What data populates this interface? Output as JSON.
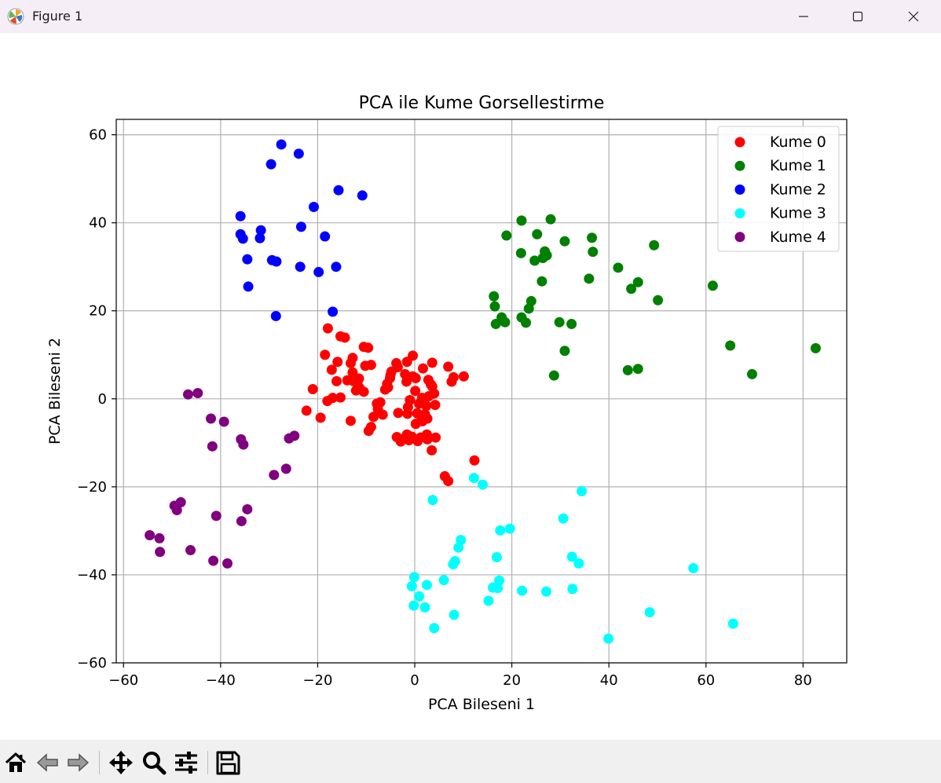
{
  "window": {
    "title": "Figure 1",
    "icons": {
      "app": "matplotlib-icon",
      "minimize": "minimize-icon",
      "maximize": "maximize-icon",
      "close": "close-icon"
    }
  },
  "toolbar": {
    "tools": [
      {
        "name": "home-button",
        "icon": "home-icon"
      },
      {
        "name": "back-button",
        "icon": "back-arrow-icon"
      },
      {
        "name": "forward-button",
        "icon": "forward-arrow-icon"
      },
      {
        "name": "pan-button",
        "icon": "move-icon"
      },
      {
        "name": "zoom-button",
        "icon": "magnifier-icon"
      },
      {
        "name": "configure-subplots-button",
        "icon": "sliders-icon"
      },
      {
        "name": "save-button",
        "icon": "floppy-disk-icon"
      }
    ]
  },
  "chart_data": {
    "type": "scatter",
    "title": "PCA ile Kume Gorsellestirme",
    "xlabel": "PCA Bileseni 1",
    "ylabel": "PCA Bileseni 2",
    "xlim": [
      -61.5,
      89
    ],
    "ylim": [
      -60,
      63.5
    ],
    "xticks": [
      -60,
      -40,
      -20,
      0,
      20,
      40,
      60,
      80
    ],
    "yticks": [
      -60,
      -40,
      -20,
      0,
      20,
      40,
      60
    ],
    "grid": true,
    "legend_position": "top-right",
    "series": [
      {
        "name": "Kume 0",
        "color": "#ff0000",
        "points": [
          [
            -17.9,
            16.0
          ],
          [
            -15.3,
            14.2
          ],
          [
            -14.4,
            13.9
          ],
          [
            -10.5,
            11.8
          ],
          [
            -9.6,
            11.6
          ],
          [
            -18.5,
            10.0
          ],
          [
            -12.8,
            9.3
          ],
          [
            -15.9,
            8.4
          ],
          [
            -13.2,
            8.1
          ],
          [
            -17.1,
            6.6
          ],
          [
            -12.8,
            6.0
          ],
          [
            -11.5,
            4.6
          ],
          [
            -13.9,
            4.2
          ],
          [
            -12.6,
            4.0
          ],
          [
            -11.8,
            3.7
          ],
          [
            -16.1,
            4.0
          ],
          [
            -12.1,
            1.9
          ],
          [
            -10.5,
            1.6
          ],
          [
            -21.0,
            2.2
          ],
          [
            -15.3,
            0.3
          ],
          [
            -16.9,
            0.2
          ],
          [
            -18.0,
            -0.5
          ],
          [
            -22.3,
            -2.7
          ],
          [
            -19.4,
            -4.3
          ],
          [
            -13.2,
            -5.0
          ],
          [
            -9.5,
            -7.3
          ],
          [
            -9.0,
            -6.4
          ],
          [
            -8.5,
            -4.1
          ],
          [
            -7.6,
            -2.3
          ],
          [
            -7.1,
            -0.8
          ],
          [
            -7.8,
            -1.1
          ],
          [
            -10.2,
            7.5
          ],
          [
            -9.0,
            7.7
          ],
          [
            -6.1,
            2.1
          ],
          [
            -5.7,
            3.4
          ],
          [
            -5.1,
            4.7
          ],
          [
            -4.8,
            6.2
          ],
          [
            -3.8,
            8.1
          ],
          [
            -3.5,
            7.2
          ],
          [
            -5.5,
            2.6
          ],
          [
            -1.6,
            8.4
          ],
          [
            -0.4,
            9.8
          ],
          [
            -2.0,
            5.6
          ],
          [
            -0.4,
            5.1
          ],
          [
            -1.7,
            3.9
          ],
          [
            0.2,
            4.7
          ],
          [
            1.7,
            6.9
          ],
          [
            3.6,
            8.2
          ],
          [
            6.9,
            7.3
          ],
          [
            7.6,
            3.9
          ],
          [
            8.0,
            4.9
          ],
          [
            10.1,
            5.1
          ],
          [
            2.8,
            4.3
          ],
          [
            3.3,
            3.3
          ],
          [
            2.9,
            0.6
          ],
          [
            0.1,
            1.8
          ],
          [
            1.5,
            0.2
          ],
          [
            0.9,
            -1.1
          ],
          [
            2.4,
            -1.6
          ],
          [
            4.2,
            -1.4
          ],
          [
            -1.0,
            -0.3
          ],
          [
            -1.4,
            -1.9
          ],
          [
            -3.4,
            -3.2
          ],
          [
            -1.5,
            -3.4
          ],
          [
            0.5,
            -3.3
          ],
          [
            1.4,
            -4.3
          ],
          [
            2.6,
            -4.5
          ],
          [
            1.6,
            -5.1
          ],
          [
            0.2,
            -5.7
          ],
          [
            2.1,
            -3.5
          ],
          [
            -3.7,
            -8.7
          ],
          [
            -2.5,
            -9.1
          ],
          [
            -2.9,
            -9.7
          ],
          [
            -1.6,
            -8.1
          ],
          [
            -0.6,
            -8.6
          ],
          [
            -1.2,
            -9.4
          ],
          [
            1.2,
            -8.8
          ],
          [
            2.5,
            -8.1
          ],
          [
            4.3,
            -8.8
          ],
          [
            2.6,
            -9.2
          ],
          [
            0.6,
            -9.6
          ],
          [
            3.5,
            -11.7
          ],
          [
            6.2,
            -17.6
          ],
          [
            6.9,
            -18.7
          ],
          [
            12.3,
            -14.0
          ],
          [
            3.6,
            2.8
          ],
          [
            4.0,
            1.2
          ],
          [
            -5.0,
            5.4
          ],
          [
            -11.4,
            2.5
          ],
          [
            -6.6,
            -3.6
          ]
        ]
      },
      {
        "name": "Kume 1",
        "color": "#008000",
        "points": [
          [
            22.0,
            40.5
          ],
          [
            28.0,
            40.8
          ],
          [
            18.9,
            37.1
          ],
          [
            25.2,
            37.4
          ],
          [
            30.9,
            35.8
          ],
          [
            36.5,
            36.6
          ],
          [
            21.9,
            33.1
          ],
          [
            26.8,
            33.5
          ],
          [
            24.7,
            31.4
          ],
          [
            26.4,
            32.0
          ],
          [
            27.2,
            32.6
          ],
          [
            36.7,
            33.4
          ],
          [
            49.3,
            34.9
          ],
          [
            41.9,
            29.8
          ],
          [
            26.2,
            26.7
          ],
          [
            35.9,
            27.3
          ],
          [
            46.0,
            26.5
          ],
          [
            44.6,
            25.0
          ],
          [
            61.4,
            25.7
          ],
          [
            50.1,
            22.4
          ],
          [
            16.3,
            23.3
          ],
          [
            24.0,
            22.2
          ],
          [
            16.5,
            21.0
          ],
          [
            23.5,
            20.5
          ],
          [
            17.9,
            18.5
          ],
          [
            22.0,
            18.5
          ],
          [
            16.7,
            17.0
          ],
          [
            18.6,
            17.4
          ],
          [
            22.9,
            17.3
          ],
          [
            29.8,
            17.4
          ],
          [
            32.3,
            17.0
          ],
          [
            30.9,
            10.9
          ],
          [
            28.7,
            5.3
          ],
          [
            43.9,
            6.5
          ],
          [
            46.0,
            6.8
          ],
          [
            65.0,
            12.1
          ],
          [
            69.5,
            5.6
          ],
          [
            82.6,
            11.5
          ]
        ]
      },
      {
        "name": "Kume 2",
        "color": "#0000ff",
        "points": [
          [
            -27.5,
            57.8
          ],
          [
            -23.9,
            55.7
          ],
          [
            -29.6,
            53.3
          ],
          [
            -15.7,
            47.4
          ],
          [
            -10.8,
            46.2
          ],
          [
            -20.8,
            43.6
          ],
          [
            -35.9,
            41.5
          ],
          [
            -23.4,
            39.1
          ],
          [
            -31.7,
            38.3
          ],
          [
            -35.9,
            37.4
          ],
          [
            -35.4,
            36.4
          ],
          [
            -31.9,
            36.5
          ],
          [
            -18.5,
            36.9
          ],
          [
            -34.5,
            31.7
          ],
          [
            -29.4,
            31.5
          ],
          [
            -28.5,
            31.2
          ],
          [
            -23.6,
            30.0
          ],
          [
            -16.2,
            30.0
          ],
          [
            -19.8,
            28.8
          ],
          [
            -34.3,
            25.5
          ],
          [
            -16.9,
            19.8
          ],
          [
            -28.6,
            18.8
          ]
        ]
      },
      {
        "name": "Kume 3",
        "color": "#00ffff",
        "points": [
          [
            12.2,
            -18.0
          ],
          [
            14.0,
            -19.5
          ],
          [
            34.4,
            -21.0
          ],
          [
            3.7,
            -23.0
          ],
          [
            30.6,
            -27.2
          ],
          [
            17.6,
            -29.9
          ],
          [
            19.6,
            -29.5
          ],
          [
            9.5,
            -32.1
          ],
          [
            9.0,
            -33.8
          ],
          [
            8.3,
            -36.9
          ],
          [
            7.9,
            -37.6
          ],
          [
            16.9,
            -36.0
          ],
          [
            32.4,
            -35.9
          ],
          [
            33.8,
            -37.4
          ],
          [
            57.4,
            -38.5
          ],
          [
            -0.1,
            -40.5
          ],
          [
            6.0,
            -41.2
          ],
          [
            17.4,
            -41.3
          ],
          [
            2.5,
            -42.3
          ],
          [
            -0.6,
            -42.6
          ],
          [
            16.1,
            -42.9
          ],
          [
            17.1,
            -43.0
          ],
          [
            22.1,
            -43.6
          ],
          [
            27.1,
            -43.8
          ],
          [
            32.5,
            -43.2
          ],
          [
            0.9,
            -44.9
          ],
          [
            -0.2,
            -47.0
          ],
          [
            15.2,
            -45.9
          ],
          [
            2.1,
            -47.4
          ],
          [
            8.1,
            -49.1
          ],
          [
            48.4,
            -48.5
          ],
          [
            4.0,
            -52.1
          ],
          [
            65.6,
            -51.1
          ],
          [
            39.9,
            -54.5
          ]
        ]
      },
      {
        "name": "Kume 4",
        "color": "#800080",
        "points": [
          [
            -46.7,
            1.0
          ],
          [
            -44.7,
            1.3
          ],
          [
            -42.0,
            -4.5
          ],
          [
            -39.3,
            -5.2
          ],
          [
            -41.7,
            -10.8
          ],
          [
            -35.8,
            -9.2
          ],
          [
            -35.3,
            -10.4
          ],
          [
            -25.9,
            -9.0
          ],
          [
            -24.8,
            -8.4
          ],
          [
            -29.0,
            -17.3
          ],
          [
            -26.5,
            -15.9
          ],
          [
            -49.5,
            -24.3
          ],
          [
            -48.2,
            -23.5
          ],
          [
            -49.0,
            -25.3
          ],
          [
            -40.9,
            -26.6
          ],
          [
            -34.5,
            -25.1
          ],
          [
            -35.7,
            -27.8
          ],
          [
            -54.6,
            -31.0
          ],
          [
            -52.6,
            -31.7
          ],
          [
            -52.5,
            -34.8
          ],
          [
            -46.2,
            -34.4
          ],
          [
            -41.5,
            -36.8
          ],
          [
            -38.6,
            -37.4
          ]
        ]
      }
    ]
  }
}
